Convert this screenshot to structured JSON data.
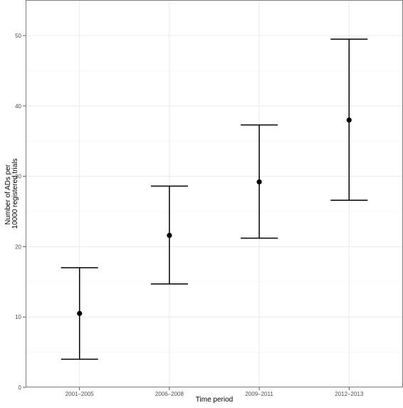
{
  "chart_data": {
    "type": "scatter",
    "subtype": "point-with-error-bars",
    "title": "",
    "xlabel": "Time period",
    "ylabel_lines": [
      "Number of ADs per",
      "10000 registered trials"
    ],
    "categories": [
      "2001–2005",
      "2006–2008",
      "2009–2011",
      "2012–2013"
    ],
    "points": [
      {
        "category": "2001–2005",
        "value": 10.5,
        "lower": 4.0,
        "upper": 17.0
      },
      {
        "category": "2006–2008",
        "value": 21.6,
        "lower": 14.7,
        "upper": 28.6
      },
      {
        "category": "2009–2011",
        "value": 29.2,
        "lower": 21.2,
        "upper": 37.3
      },
      {
        "category": "2012–2013",
        "value": 38.0,
        "lower": 26.6,
        "upper": 49.5
      }
    ],
    "yticks": [
      0,
      10,
      20,
      30,
      40,
      50
    ],
    "ylim": [
      0,
      55
    ],
    "grid": true,
    "legend": "none",
    "colors": {
      "point": "#000000",
      "errorbar": "#000000",
      "grid_major": "#e6e6e6",
      "grid_minor": "#f4f4f4",
      "panel_border": "#7f7f7f",
      "tick_label": "#4d4d4d"
    }
  }
}
